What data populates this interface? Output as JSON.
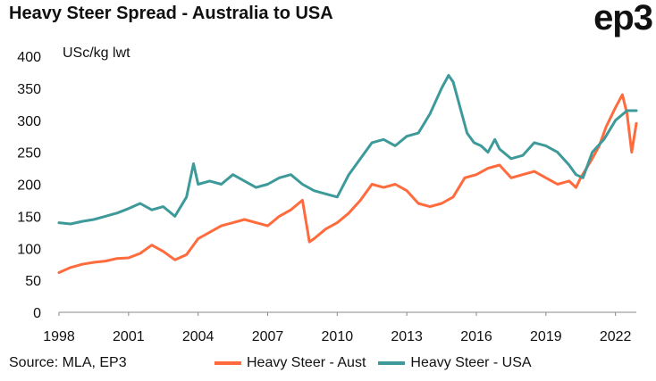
{
  "header": {
    "title": "Heavy Steer Spread - Australia to USA",
    "logo_text": "ep3"
  },
  "footer": {
    "source": "Source: MLA, EP3"
  },
  "colors": {
    "aust": "#FF6B3D",
    "usa": "#3E9A9A"
  },
  "chart_data": {
    "type": "line",
    "title": "Heavy Steer Spread - Australia to USA",
    "xlabel": "",
    "ylabel": "USc/kg lwt",
    "xlim": [
      1998,
      2022.9
    ],
    "ylim": [
      0,
      400
    ],
    "x_ticks": [
      "1998",
      "2001",
      "2004",
      "2007",
      "2010",
      "2013",
      "2016",
      "2019",
      "2022"
    ],
    "y_ticks": [
      "0",
      "50",
      "100",
      "150",
      "200",
      "250",
      "300",
      "350",
      "400"
    ],
    "grid": false,
    "legend_position": "bottom",
    "series": [
      {
        "name": "Heavy Steer - Aust",
        "color": "#FF6B3D",
        "x": [
          1998.0,
          1998.5,
          1999.0,
          1999.5,
          2000.0,
          2000.5,
          2001.0,
          2001.5,
          2002.0,
          2002.5,
          2003.0,
          2003.5,
          2004.0,
          2004.5,
          2005.0,
          2005.5,
          2006.0,
          2006.5,
          2007.0,
          2007.5,
          2008.0,
          2008.5,
          2008.8,
          2009.0,
          2009.5,
          2010.0,
          2010.5,
          2011.0,
          2011.5,
          2012.0,
          2012.5,
          2013.0,
          2013.5,
          2014.0,
          2014.5,
          2015.0,
          2015.5,
          2016.0,
          2016.5,
          2017.0,
          2017.5,
          2018.0,
          2018.5,
          2019.0,
          2019.5,
          2020.0,
          2020.3,
          2020.5,
          2021.0,
          2021.3,
          2021.6,
          2022.0,
          2022.3,
          2022.5,
          2022.7,
          2022.9
        ],
        "values": [
          62,
          70,
          75,
          78,
          80,
          84,
          85,
          92,
          105,
          95,
          82,
          90,
          115,
          125,
          135,
          140,
          145,
          140,
          135,
          150,
          160,
          175,
          110,
          115,
          130,
          140,
          155,
          175,
          200,
          195,
          200,
          190,
          170,
          165,
          170,
          180,
          210,
          215,
          225,
          230,
          210,
          215,
          220,
          210,
          200,
          205,
          195,
          210,
          240,
          260,
          290,
          320,
          340,
          310,
          250,
          295
        ]
      },
      {
        "name": "Heavy Steer - USA",
        "color": "#3E9A9A",
        "x": [
          1998.0,
          1998.5,
          1999.0,
          1999.5,
          2000.0,
          2000.5,
          2001.0,
          2001.5,
          2002.0,
          2002.5,
          2003.0,
          2003.5,
          2003.8,
          2004.0,
          2004.5,
          2005.0,
          2005.5,
          2006.0,
          2006.5,
          2007.0,
          2007.5,
          2008.0,
          2008.5,
          2009.0,
          2009.5,
          2010.0,
          2010.5,
          2011.0,
          2011.5,
          2012.0,
          2012.5,
          2013.0,
          2013.5,
          2014.0,
          2014.5,
          2014.8,
          2015.0,
          2015.3,
          2015.6,
          2015.9,
          2016.2,
          2016.5,
          2016.8,
          2017.0,
          2017.5,
          2018.0,
          2018.5,
          2019.0,
          2019.5,
          2020.0,
          2020.3,
          2020.6,
          2021.0,
          2021.5,
          2022.0,
          2022.5,
          2022.9
        ],
        "values": [
          140,
          138,
          142,
          145,
          150,
          155,
          162,
          170,
          160,
          165,
          150,
          180,
          232,
          200,
          205,
          200,
          215,
          205,
          195,
          200,
          210,
          215,
          200,
          190,
          185,
          180,
          215,
          240,
          265,
          270,
          260,
          275,
          280,
          310,
          350,
          370,
          360,
          320,
          280,
          265,
          260,
          250,
          270,
          255,
          240,
          245,
          265,
          260,
          250,
          230,
          215,
          210,
          250,
          270,
          300,
          315,
          315
        ]
      }
    ]
  }
}
